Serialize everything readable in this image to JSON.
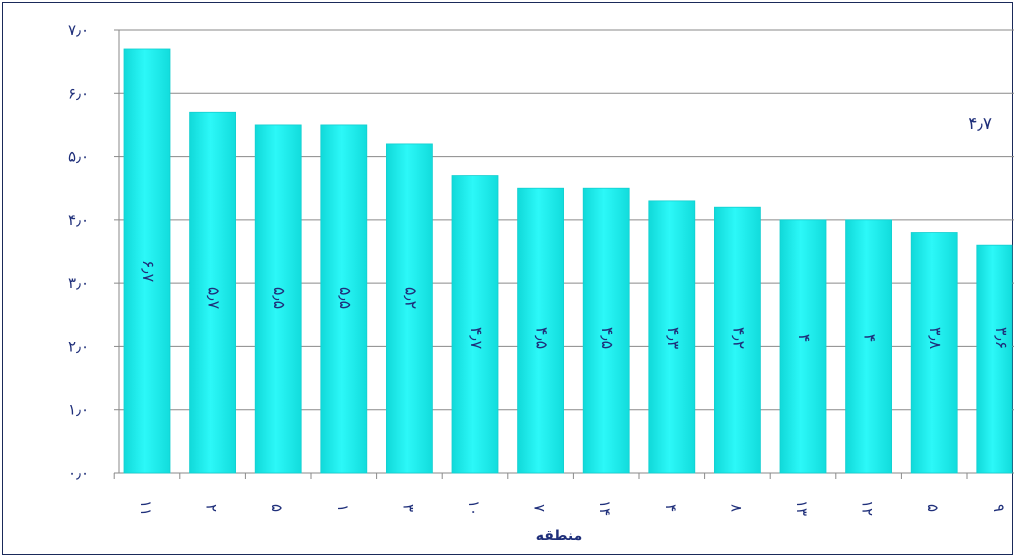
{
  "chart_data": {
    "type": "bar",
    "xlabel": "منطقه",
    "ylabel": "",
    "title": "",
    "categories": [
      "۱۱",
      "۲",
      "۵",
      "۱",
      "۳",
      "۱۰",
      "۷",
      "۱۴",
      "۴",
      "۸",
      "۱۳",
      "۱۲",
      "۵",
      "۹"
    ],
    "values": [
      6.7,
      5.7,
      5.5,
      5.5,
      5.2,
      4.7,
      4.5,
      4.5,
      4.3,
      4.2,
      4.0,
      4.0,
      3.8,
      3.6
    ],
    "data_labels": [
      "۶٫۷",
      "۵٫۷",
      "۵٫۵",
      "۵٫۵",
      "۵٫۲",
      "۴٫۷",
      "۴٫۵",
      "۴٫۵",
      "۴٫۳",
      "۴٫۲",
      "۴",
      "۴",
      "۳٫۸",
      "۳٫۶"
    ],
    "yticks": [
      "۰٫۰",
      "۱٫۰",
      "۲٫۰",
      "۳٫۰",
      "۴٫۰",
      "۵٫۰",
      "۶٫۰",
      "۷٫۰"
    ],
    "ylim": [
      0,
      7
    ],
    "grid": true,
    "average": {
      "value": 4.7,
      "label": "۴٫۷"
    },
    "colors": {
      "bar": "#19f3f3",
      "bar_edge": "#13cfd0",
      "text": "#1f2f7a",
      "grid": "#8a8a8a"
    }
  }
}
